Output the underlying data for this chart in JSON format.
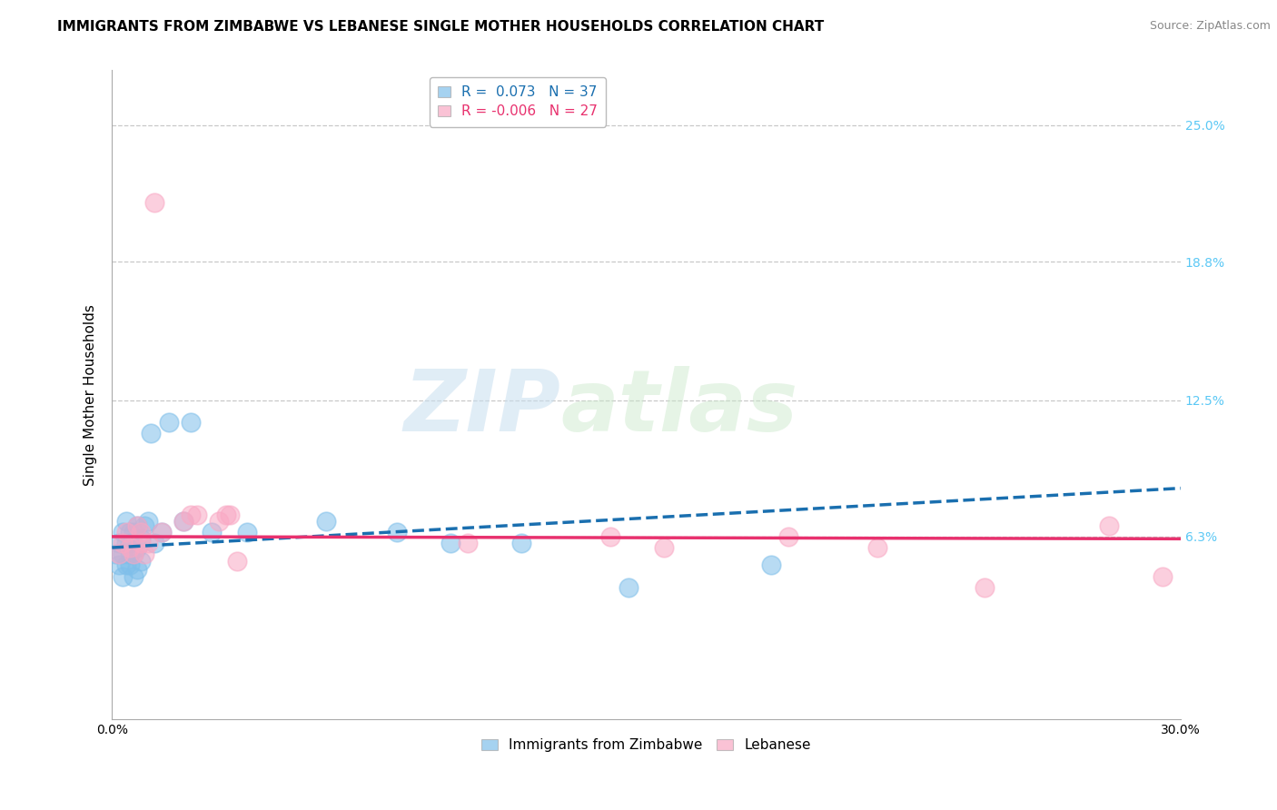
{
  "title": "IMMIGRANTS FROM ZIMBABWE VS LEBANESE SINGLE MOTHER HOUSEHOLDS CORRELATION CHART",
  "source": "Source: ZipAtlas.com",
  "ylabel": "Single Mother Households",
  "xlim": [
    0,
    0.3
  ],
  "ylim": [
    -0.02,
    0.275
  ],
  "plot_ylim": [
    -0.02,
    0.275
  ],
  "yticks": [
    0.063,
    0.125,
    0.188,
    0.25
  ],
  "ytick_labels": [
    "6.3%",
    "12.5%",
    "18.8%",
    "25.0%"
  ],
  "xticks": [
    0.0,
    0.05,
    0.1,
    0.15,
    0.2,
    0.25,
    0.3
  ],
  "xtick_labels": [
    "0.0%",
    "",
    "",
    "",
    "",
    "",
    "30.0%"
  ],
  "legend_r1": "R =  0.073   N = 37",
  "legend_r2": "R = -0.006   N = 27",
  "legend_bottom": [
    "Immigrants from Zimbabwe",
    "Lebanese"
  ],
  "watermark_zip": "ZIP",
  "watermark_atlas": "atlas",
  "blue_scatter_x": [
    0.001,
    0.002,
    0.002,
    0.003,
    0.003,
    0.003,
    0.004,
    0.004,
    0.004,
    0.005,
    0.005,
    0.005,
    0.005,
    0.006,
    0.006,
    0.006,
    0.007,
    0.007,
    0.007,
    0.008,
    0.008,
    0.009,
    0.01,
    0.011,
    0.012,
    0.014,
    0.016,
    0.02,
    0.022,
    0.028,
    0.038,
    0.06,
    0.08,
    0.095,
    0.115,
    0.145,
    0.185
  ],
  "blue_scatter_y": [
    0.055,
    0.06,
    0.05,
    0.045,
    0.055,
    0.065,
    0.05,
    0.06,
    0.07,
    0.05,
    0.055,
    0.06,
    0.065,
    0.045,
    0.055,
    0.065,
    0.048,
    0.058,
    0.068,
    0.052,
    0.062,
    0.068,
    0.07,
    0.11,
    0.06,
    0.065,
    0.115,
    0.07,
    0.115,
    0.065,
    0.065,
    0.07,
    0.065,
    0.06,
    0.06,
    0.04,
    0.05
  ],
  "pink_scatter_x": [
    0.002,
    0.003,
    0.004,
    0.005,
    0.006,
    0.007,
    0.008,
    0.008,
    0.009,
    0.01,
    0.012,
    0.014,
    0.02,
    0.022,
    0.024,
    0.03,
    0.032,
    0.033,
    0.035,
    0.1,
    0.14,
    0.155,
    0.19,
    0.215,
    0.245,
    0.28,
    0.295
  ],
  "pink_scatter_y": [
    0.055,
    0.06,
    0.065,
    0.058,
    0.055,
    0.068,
    0.065,
    0.06,
    0.055,
    0.06,
    0.215,
    0.065,
    0.07,
    0.073,
    0.073,
    0.07,
    0.073,
    0.073,
    0.052,
    0.06,
    0.063,
    0.058,
    0.063,
    0.058,
    0.04,
    0.068,
    0.045
  ],
  "blue_line_x": [
    0.0,
    0.3
  ],
  "blue_line_y": [
    0.058,
    0.085
  ],
  "pink_line_x": [
    0.0,
    0.3
  ],
  "pink_line_y": [
    0.063,
    0.062
  ],
  "blue_scatter_color": "#7fbfea",
  "pink_scatter_color": "#f9a8c4",
  "blue_line_color": "#1a6faf",
  "pink_line_color": "#e8316e",
  "background_color": "#ffffff",
  "grid_color": "#c8c8c8",
  "right_tick_color": "#5bc8f5",
  "title_fontsize": 11,
  "axis_label_fontsize": 11,
  "tick_fontsize": 10,
  "source_fontsize": 9
}
